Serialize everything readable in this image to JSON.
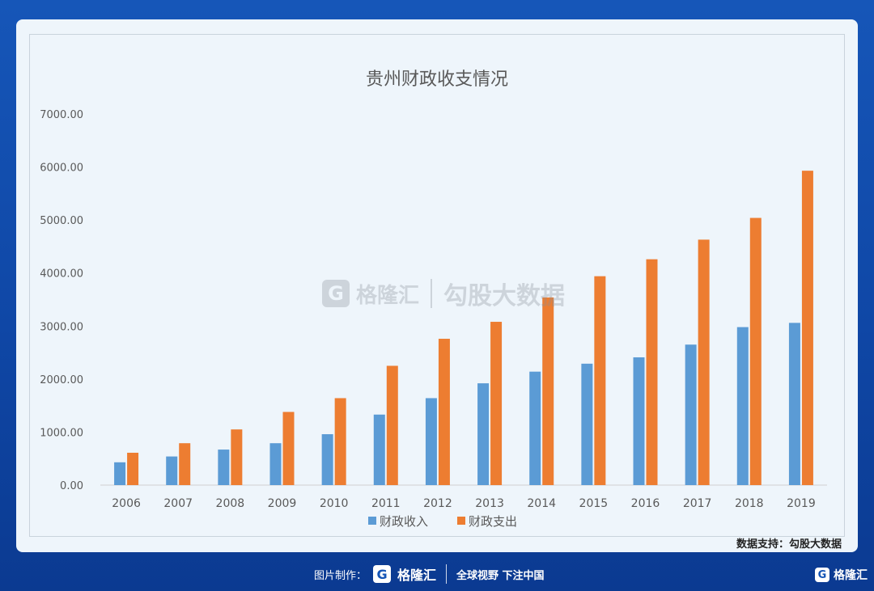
{
  "chart_data": {
    "type": "bar",
    "title": "贵州财政收支情况",
    "categories": [
      "2006",
      "2007",
      "2008",
      "2009",
      "2010",
      "2011",
      "2012",
      "2013",
      "2014",
      "2015",
      "2016",
      "2017",
      "2018",
      "2019"
    ],
    "series": [
      {
        "name": "财政收入",
        "color": "#5b9bd5",
        "values": [
          430,
          540,
          670,
          790,
          960,
          1330,
          1640,
          1920,
          2140,
          2290,
          2410,
          2650,
          2980,
          3060
        ]
      },
      {
        "name": "财政支出",
        "color": "#ed7d31",
        "values": [
          610,
          790,
          1050,
          1380,
          1640,
          2250,
          2760,
          3080,
          3540,
          3940,
          4260,
          4630,
          5040,
          5930
        ]
      }
    ],
    "yticks": [
      "0.00",
      "1000.00",
      "2000.00",
      "3000.00",
      "4000.00",
      "5000.00",
      "6000.00",
      "7000.00"
    ],
    "ylim": [
      0,
      7000
    ],
    "grid": false,
    "legend_position": "bottom"
  },
  "watermark": {
    "logo_glyph": "G",
    "brand": "格隆汇",
    "source": "勾股大数据"
  },
  "source_credit": "数据支持：勾股大数据",
  "footer": {
    "made_by_label": "图片制作：",
    "logo_glyph": "G",
    "brand": "格隆汇",
    "slogan": "全球视野 下注中国",
    "corner_brand": "格隆汇"
  }
}
